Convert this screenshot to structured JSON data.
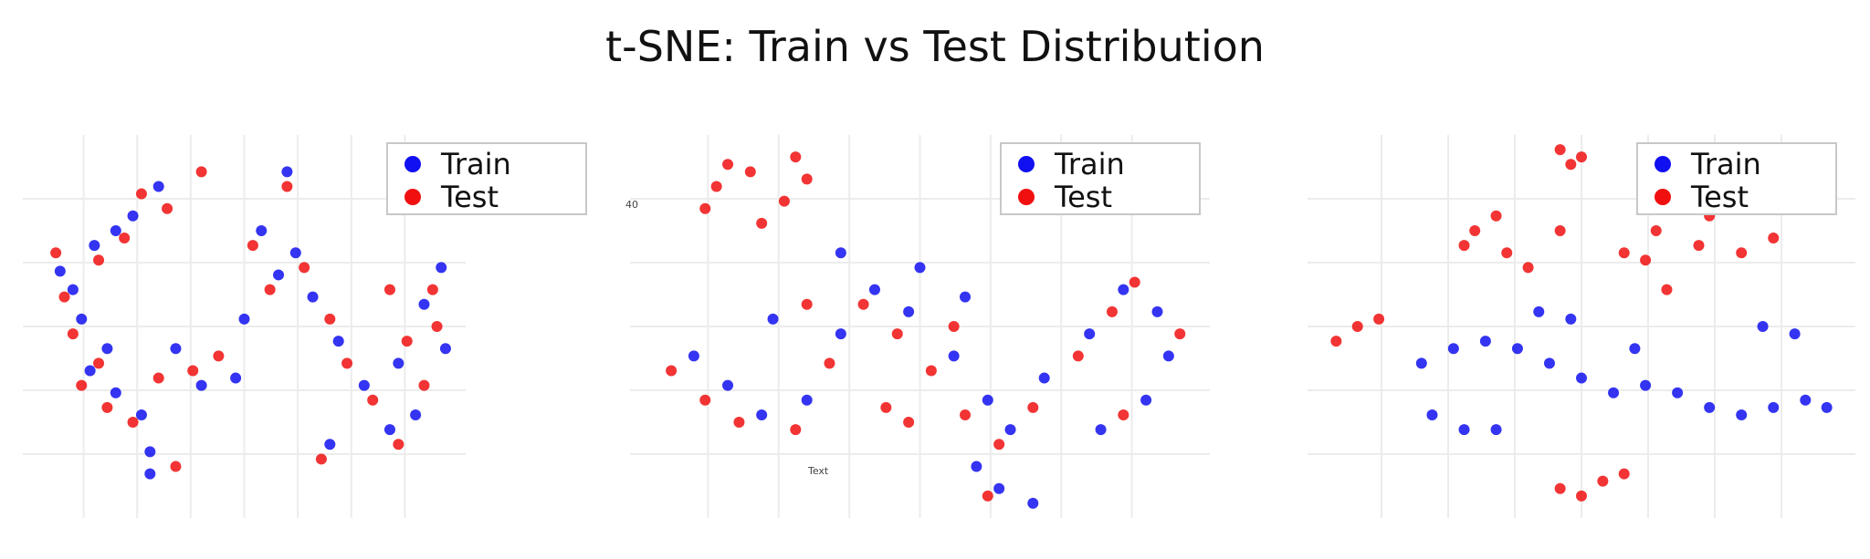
{
  "title": "t-SNE: Train vs Test Distribution",
  "colors": {
    "Train": "#1010f0",
    "Test": "#f01010"
  },
  "chart_data": [
    {
      "type": "scatter",
      "title": "",
      "legend": {
        "position": "top-right",
        "entries": [
          "Train",
          "Test"
        ]
      },
      "grid": true,
      "xlim": [
        0,
        100
      ],
      "ylim": [
        0,
        100
      ],
      "ytick_labels": [],
      "annotations": [],
      "clusters": [
        {
          "series": "Train",
          "points": [
            [
              10,
              60
            ],
            [
              7,
              65
            ],
            [
              12,
              52
            ],
            [
              15,
              72
            ],
            [
              20,
              76
            ],
            [
              24,
              80
            ],
            [
              30,
              88
            ],
            [
              14,
              38
            ],
            [
              20,
              32
            ],
            [
              26,
              26
            ],
            [
              18,
              44
            ],
            [
              54,
              76
            ],
            [
              58,
              64
            ],
            [
              62,
              70
            ],
            [
              66,
              58
            ],
            [
              72,
              46
            ],
            [
              78,
              34
            ],
            [
              84,
              22
            ],
            [
              86,
              40
            ],
            [
              92,
              56
            ],
            [
              96,
              66
            ],
            [
              97,
              44
            ],
            [
              90,
              26
            ],
            [
              70,
              18
            ],
            [
              50,
              52
            ],
            [
              40,
              34
            ],
            [
              34,
              44
            ],
            [
              48,
              36
            ],
            [
              60,
              92
            ],
            [
              28,
              16
            ],
            [
              28,
              10
            ]
          ]
        },
        {
          "series": "Test",
          "points": [
            [
              8,
              58
            ],
            [
              6,
              70
            ],
            [
              10,
              48
            ],
            [
              16,
              68
            ],
            [
              22,
              74
            ],
            [
              26,
              86
            ],
            [
              32,
              82
            ],
            [
              12,
              34
            ],
            [
              18,
              28
            ],
            [
              24,
              24
            ],
            [
              16,
              40
            ],
            [
              52,
              72
            ],
            [
              56,
              60
            ],
            [
              64,
              66
            ],
            [
              70,
              52
            ],
            [
              74,
              40
            ],
            [
              80,
              30
            ],
            [
              86,
              18
            ],
            [
              88,
              46
            ],
            [
              94,
              60
            ],
            [
              95,
              50
            ],
            [
              92,
              34
            ],
            [
              68,
              14
            ],
            [
              44,
              42
            ],
            [
              38,
              38
            ],
            [
              30,
              36
            ],
            [
              34,
              12
            ],
            [
              60,
              88
            ],
            [
              40,
              92
            ],
            [
              84,
              60
            ]
          ]
        }
      ]
    },
    {
      "type": "scatter",
      "title": "",
      "legend": {
        "position": "top-right",
        "entries": [
          "Train",
          "Test"
        ]
      },
      "grid": true,
      "xlim": [
        0,
        100
      ],
      "ylim": [
        0,
        100
      ],
      "ytick_labels": [
        "40"
      ],
      "annotations": [
        "Text"
      ],
      "clusters": [
        {
          "series": "Train",
          "points": [
            [
              10,
              42
            ],
            [
              16,
              34
            ],
            [
              22,
              26
            ],
            [
              30,
              30
            ],
            [
              36,
              48
            ],
            [
              42,
              60
            ],
            [
              48,
              54
            ],
            [
              56,
              42
            ],
            [
              62,
              30
            ],
            [
              66,
              22
            ],
            [
              72,
              36
            ],
            [
              80,
              48
            ],
            [
              86,
              60
            ],
            [
              92,
              54
            ],
            [
              94,
              42
            ],
            [
              90,
              30
            ],
            [
              82,
              22
            ],
            [
              60,
              12
            ],
            [
              64,
              6
            ],
            [
              70,
              2
            ],
            [
              50,
              66
            ],
            [
              36,
              70
            ],
            [
              24,
              52
            ],
            [
              58,
              58
            ]
          ]
        },
        {
          "series": "Test",
          "points": [
            [
              6,
              38
            ],
            [
              12,
              30
            ],
            [
              18,
              24
            ],
            [
              28,
              22
            ],
            [
              34,
              40
            ],
            [
              40,
              56
            ],
            [
              46,
              48
            ],
            [
              52,
              38
            ],
            [
              58,
              26
            ],
            [
              64,
              18
            ],
            [
              70,
              28
            ],
            [
              78,
              42
            ],
            [
              84,
              54
            ],
            [
              88,
              62
            ],
            [
              96,
              48
            ],
            [
              86,
              26
            ],
            [
              30,
              56
            ],
            [
              44,
              28
            ],
            [
              56,
              50
            ],
            [
              14,
              88
            ],
            [
              20,
              92
            ],
            [
              28,
              96
            ],
            [
              12,
              82
            ],
            [
              26,
              84
            ],
            [
              22,
              78
            ],
            [
              16,
              94
            ],
            [
              30,
              90
            ],
            [
              62,
              4
            ],
            [
              48,
              24
            ]
          ]
        }
      ]
    },
    {
      "type": "scatter",
      "title": "",
      "legend": {
        "position": "top-right",
        "entries": [
          "Train",
          "Test"
        ]
      },
      "grid": true,
      "xlim": [
        0,
        100
      ],
      "ylim": [
        0,
        100
      ],
      "ytick_labels": [],
      "annotations": [],
      "clusters": [
        {
          "series": "Train",
          "points": [
            [
              20,
              40
            ],
            [
              26,
              44
            ],
            [
              32,
              46
            ],
            [
              38,
              44
            ],
            [
              44,
              40
            ],
            [
              50,
              36
            ],
            [
              56,
              32
            ],
            [
              62,
              34
            ],
            [
              68,
              32
            ],
            [
              74,
              28
            ],
            [
              80,
              26
            ],
            [
              86,
              28
            ],
            [
              92,
              30
            ],
            [
              96,
              28
            ],
            [
              22,
              26
            ],
            [
              28,
              22
            ],
            [
              34,
              22
            ],
            [
              90,
              48
            ],
            [
              84,
              50
            ],
            [
              60,
              44
            ],
            [
              42,
              54
            ],
            [
              48,
              52
            ]
          ]
        },
        {
          "series": "Test",
          "points": [
            [
              4,
              46
            ],
            [
              8,
              50
            ],
            [
              12,
              52
            ],
            [
              28,
              72
            ],
            [
              30,
              76
            ],
            [
              34,
              80
            ],
            [
              36,
              70
            ],
            [
              46,
              76
            ],
            [
              58,
              70
            ],
            [
              62,
              68
            ],
            [
              64,
              76
            ],
            [
              72,
              72
            ],
            [
              74,
              80
            ],
            [
              80,
              70
            ],
            [
              86,
              74
            ],
            [
              46,
              98
            ],
            [
              48,
              94
            ],
            [
              50,
              96
            ],
            [
              46,
              6
            ],
            [
              50,
              4
            ],
            [
              54,
              8
            ],
            [
              58,
              10
            ],
            [
              40,
              66
            ],
            [
              66,
              60
            ]
          ]
        }
      ]
    }
  ]
}
